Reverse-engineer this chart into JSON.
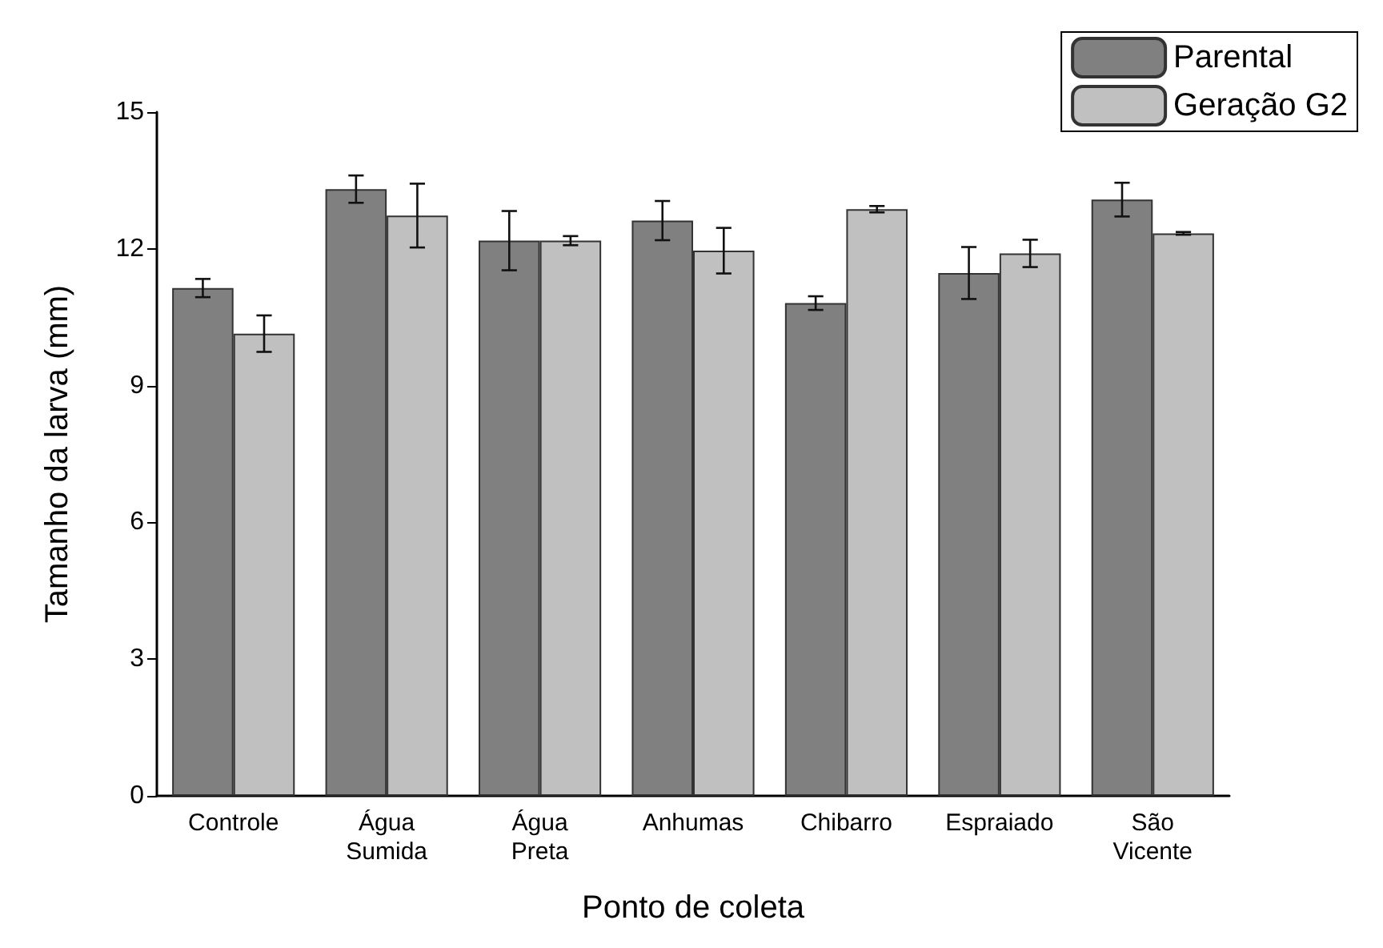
{
  "chart_data": {
    "type": "bar",
    "xlabel": "Ponto de coleta",
    "ylabel": "Tamanho da larva (mm)",
    "categories": [
      "Controle",
      "Água\nSumida",
      "Água\nPreta",
      "Anhumas",
      "Chibarro",
      "Espraiado",
      "São\nVicente"
    ],
    "series": [
      {
        "name": "Parental",
        "color": "#808080",
        "values": [
          11.14,
          13.31,
          12.18,
          12.62,
          10.81,
          11.47,
          13.08
        ],
        "errors": [
          0.2,
          0.3,
          0.65,
          0.43,
          0.15,
          0.57,
          0.37
        ]
      },
      {
        "name": "Geração G2",
        "color": "#c0c0c0",
        "values": [
          10.14,
          12.73,
          12.18,
          11.96,
          12.87,
          11.9,
          12.34
        ],
        "errors": [
          0.4,
          0.7,
          0.1,
          0.5,
          0.07,
          0.3,
          0.03
        ]
      }
    ],
    "ylim": [
      0,
      15
    ],
    "yticks": [
      0,
      3,
      6,
      9,
      12,
      15
    ],
    "grid": false,
    "legend": "top right"
  }
}
